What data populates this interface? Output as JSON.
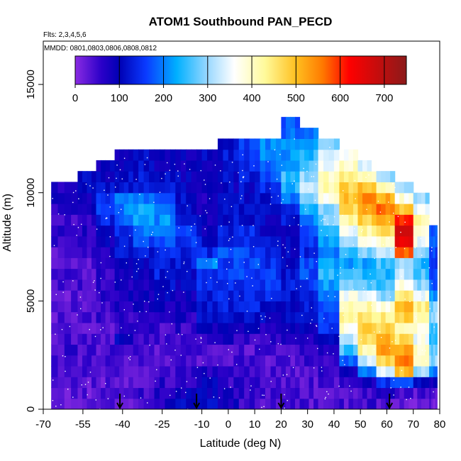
{
  "chart_data": {
    "type": "heatmap",
    "title": "ATOM1 Southbound PAN_PECD",
    "flights_note": "Flts: 2,3,4,5,6",
    "dates_note": "MMDD: 0801,0803,0806,0808,0812",
    "xlabel": "Latitude (deg N)",
    "ylabel": "Altitude (m)",
    "xlim": [
      -70,
      80
    ],
    "ylim": [
      0,
      17000
    ],
    "x_ticks": [
      {
        "value": -70,
        "label": "-70"
      },
      {
        "value": -55,
        "label": "-55"
      },
      {
        "value": -40,
        "label": "-40"
      },
      {
        "value": -25,
        "label": "-25"
      },
      {
        "value": -10,
        "label": "-10"
      },
      {
        "value": 0,
        "label": "0"
      },
      {
        "value": 10,
        "label": "10"
      },
      {
        "value": 20,
        "label": "20"
      },
      {
        "value": 30,
        "label": "30"
      },
      {
        "value": 40,
        "label": "40"
      },
      {
        "value": 50,
        "label": "50"
      },
      {
        "value": 60,
        "label": "60"
      },
      {
        "value": 70,
        "label": "70"
      },
      {
        "value": 80,
        "label": "80"
      }
    ],
    "y_ticks": [
      {
        "value": 0,
        "label": "0"
      },
      {
        "value": 5000,
        "label": "5000"
      },
      {
        "value": 10000,
        "label": "10000"
      },
      {
        "value": 15000,
        "label": "15000"
      }
    ],
    "colorbar": {
      "range": [
        0,
        750
      ],
      "ticks": [
        {
          "value": 0,
          "label": "0"
        },
        {
          "value": 100,
          "label": "100"
        },
        {
          "value": 200,
          "label": "200"
        },
        {
          "value": 300,
          "label": "300"
        },
        {
          "value": 400,
          "label": "400"
        },
        {
          "value": 500,
          "label": "500"
        },
        {
          "value": 600,
          "label": "600"
        },
        {
          "value": 700,
          "label": "700"
        }
      ],
      "stops": [
        {
          "v": 0,
          "c": "#8a2be2"
        },
        {
          "v": 60,
          "c": "#2a00c8"
        },
        {
          "v": 100,
          "c": "#0000b4"
        },
        {
          "v": 160,
          "c": "#0a3aff"
        },
        {
          "v": 230,
          "c": "#00b0ff"
        },
        {
          "v": 300,
          "c": "#9ad8ff"
        },
        {
          "v": 360,
          "c": "#ffffff"
        },
        {
          "v": 430,
          "c": "#fffa9a"
        },
        {
          "v": 500,
          "c": "#ffc020"
        },
        {
          "v": 560,
          "c": "#ff7a00"
        },
        {
          "v": 620,
          "c": "#ff0000"
        },
        {
          "v": 750,
          "c": "#8b1a1a"
        }
      ]
    },
    "sounding_latitudes": [
      -41,
      -12,
      20,
      61
    ],
    "altitude_band_m": 500,
    "columns": [
      {
        "lat_start": -67,
        "lat_end": -57,
        "top": 10500,
        "values": [
          30,
          30,
          40,
          50,
          50,
          50,
          40,
          40,
          30,
          40,
          30,
          40,
          50,
          40,
          40,
          50,
          60,
          50,
          60,
          70,
          80,
          90
        ]
      },
      {
        "lat_start": -57,
        "lat_end": -50,
        "top": 11000,
        "values": [
          30,
          30,
          30,
          40,
          40,
          50,
          40,
          40,
          40,
          40,
          40,
          50,
          40,
          40,
          50,
          60,
          70,
          70,
          80,
          90,
          100,
          100
        ]
      },
      {
        "lat_start": -50,
        "lat_end": -43,
        "top": 11500,
        "values": [
          30,
          30,
          30,
          30,
          40,
          40,
          40,
          40,
          50,
          50,
          60,
          60,
          60,
          70,
          80,
          90,
          110,
          140,
          170,
          150,
          110,
          100,
          90
        ]
      },
      {
        "lat_start": -43,
        "lat_end": -36,
        "top": 12000,
        "values": [
          30,
          30,
          30,
          30,
          40,
          40,
          110,
          50,
          60,
          70,
          80,
          80,
          90,
          100,
          130,
          140,
          150,
          170,
          200,
          190,
          130,
          110,
          100,
          100
        ]
      },
      {
        "lat_start": -36,
        "lat_end": -28,
        "top": 12000,
        "values": [
          50,
          50,
          40,
          40,
          40,
          40,
          50,
          60,
          70,
          80,
          90,
          90,
          100,
          110,
          130,
          160,
          190,
          220,
          230,
          200,
          140,
          120,
          110,
          110
        ]
      },
      {
        "lat_start": -28,
        "lat_end": -20,
        "top": 12000,
        "values": [
          80,
          80,
          60,
          50,
          40,
          40,
          40,
          50,
          60,
          80,
          100,
          110,
          130,
          120,
          140,
          170,
          190,
          210,
          200,
          180,
          140,
          120,
          100,
          100
        ]
      },
      {
        "lat_start": -20,
        "lat_end": -12,
        "top": 12000,
        "values": [
          100,
          90,
          70,
          60,
          40,
          40,
          40,
          60,
          70,
          80,
          90,
          100,
          110,
          130,
          140,
          150,
          160,
          140,
          120,
          110,
          100,
          100,
          90,
          90
        ]
      },
      {
        "lat_start": -12,
        "lat_end": -4,
        "top": 12000,
        "values": [
          110,
          100,
          90,
          70,
          40,
          40,
          60,
          90,
          110,
          120,
          130,
          140,
          150,
          200,
          140,
          120,
          100,
          90,
          80,
          80,
          90,
          100,
          100,
          100
        ]
      },
      {
        "lat_start": -4,
        "lat_end": 4,
        "top": 12500,
        "values": [
          80,
          70,
          60,
          50,
          40,
          40,
          70,
          100,
          120,
          130,
          140,
          150,
          150,
          160,
          170,
          140,
          130,
          120,
          110,
          100,
          100,
          110,
          110,
          120,
          120
        ]
      },
      {
        "lat_start": 4,
        "lat_end": 12,
        "top": 12500,
        "values": [
          60,
          60,
          50,
          50,
          40,
          40,
          60,
          90,
          110,
          130,
          140,
          150,
          160,
          170,
          160,
          150,
          140,
          120,
          110,
          110,
          110,
          130,
          140,
          150,
          160
        ]
      },
      {
        "lat_start": 12,
        "lat_end": 20,
        "top": 12500,
        "values": [
          40,
          40,
          40,
          40,
          40,
          50,
          60,
          80,
          100,
          120,
          140,
          150,
          150,
          140,
          130,
          120,
          110,
          100,
          110,
          120,
          150,
          170,
          190,
          200,
          210
        ]
      },
      {
        "lat_start": 20,
        "lat_end": 27,
        "top": 13500,
        "values": [
          40,
          40,
          40,
          40,
          40,
          50,
          60,
          80,
          100,
          110,
          120,
          130,
          120,
          110,
          100,
          100,
          110,
          120,
          140,
          200,
          240,
          250,
          230,
          210,
          200,
          190,
          180
        ]
      },
      {
        "lat_start": 27,
        "lat_end": 34,
        "top": 13000,
        "values": [
          40,
          40,
          40,
          40,
          50,
          60,
          80,
          100,
          110,
          120,
          140,
          160,
          170,
          160,
          140,
          150,
          180,
          200,
          240,
          300,
          330,
          300,
          260,
          240,
          220,
          200
        ]
      },
      {
        "lat_start": 34,
        "lat_end": 42,
        "top": 12500,
        "values": [
          30,
          40,
          40,
          50,
          60,
          80,
          110,
          140,
          160,
          180,
          200,
          220,
          240,
          220,
          200,
          230,
          260,
          280,
          300,
          380,
          420,
          400,
          360,
          330,
          300
        ]
      },
      {
        "lat_start": 42,
        "lat_end": 49,
        "top": 12000,
        "values": [
          40,
          40,
          60,
          100,
          180,
          260,
          330,
          380,
          420,
          400,
          360,
          300,
          250,
          220,
          240,
          300,
          360,
          420,
          470,
          500,
          480,
          440,
          400,
          360
        ]
      },
      {
        "lat_start": 49,
        "lat_end": 56,
        "top": 11500,
        "values": [
          50,
          50,
          90,
          200,
          330,
          420,
          460,
          480,
          450,
          420,
          340,
          280,
          240,
          230,
          280,
          360,
          420,
          480,
          520,
          540,
          500,
          420,
          340
        ]
      },
      {
        "lat_start": 56,
        "lat_end": 63,
        "top": 11000,
        "values": [
          40,
          60,
          150,
          340,
          480,
          520,
          510,
          480,
          440,
          380,
          300,
          260,
          240,
          260,
          320,
          400,
          460,
          500,
          560,
          520,
          420,
          300
        ]
      },
      {
        "lat_start": 63,
        "lat_end": 70,
        "top": 10500,
        "values": [
          30,
          50,
          180,
          500,
          560,
          520,
          460,
          420,
          480,
          520,
          460,
          380,
          320,
          300,
          580,
          640,
          660,
          600,
          500,
          380,
          300
        ]
      },
      {
        "lat_start": 70,
        "lat_end": 76,
        "top": 10000,
        "values": [
          30,
          40,
          120,
          300,
          420,
          400,
          360,
          380,
          420,
          440,
          360,
          300,
          260,
          240,
          300,
          360,
          400,
          420,
          360,
          300
        ]
      },
      {
        "lat_start": 76,
        "lat_end": 79,
        "top": 8500,
        "values": [
          30,
          30,
          80,
          200,
          300,
          280,
          240,
          260,
          300,
          280,
          220,
          180,
          150,
          140,
          160,
          180,
          170
        ]
      }
    ]
  }
}
